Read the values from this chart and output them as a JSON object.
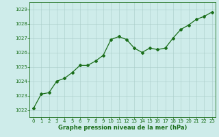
{
  "x": [
    0,
    1,
    2,
    3,
    4,
    5,
    6,
    7,
    8,
    9,
    10,
    11,
    12,
    13,
    14,
    15,
    16,
    17,
    18,
    19,
    20,
    21,
    22,
    23
  ],
  "y": [
    1022.1,
    1023.1,
    1023.2,
    1024.0,
    1024.2,
    1024.6,
    1025.1,
    1025.1,
    1025.4,
    1025.8,
    1026.9,
    1027.1,
    1026.9,
    1026.3,
    1026.0,
    1026.3,
    1026.2,
    1026.3,
    1027.0,
    1027.6,
    1027.9,
    1028.3,
    1028.5,
    1028.8
  ],
  "line_color": "#1a6e1a",
  "marker": "D",
  "marker_size": 2.0,
  "bg_color": "#ceecea",
  "grid_color": "#aaccc8",
  "xlabel": "Graphe pression niveau de la mer (hPa)",
  "xlabel_color": "#1a6e1a",
  "tick_color": "#1a6e1a",
  "ylim": [
    1021.5,
    1029.5
  ],
  "yticks": [
    1022,
    1023,
    1024,
    1025,
    1026,
    1027,
    1028,
    1029
  ],
  "xlim": [
    -0.5,
    23.5
  ],
  "xticks": [
    0,
    1,
    2,
    3,
    4,
    5,
    6,
    7,
    8,
    9,
    10,
    11,
    12,
    13,
    14,
    15,
    16,
    17,
    18,
    19,
    20,
    21,
    22,
    23
  ],
  "tick_fontsize": 5.0,
  "xlabel_fontsize": 6.0,
  "linewidth": 0.9
}
